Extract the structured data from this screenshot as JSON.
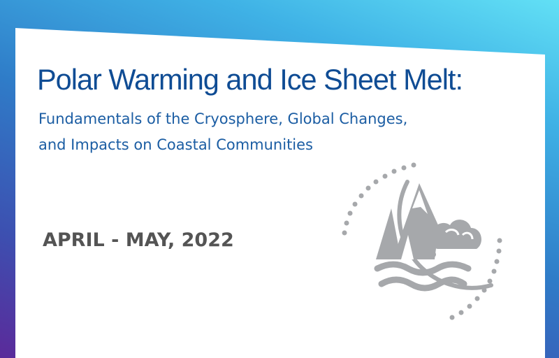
{
  "title": "Polar Warming and Ice Sheet Melt:",
  "subtitle_lines": [
    "Fundamentals of the Cryosphere, Global Changes,",
    "and Impacts on Coastal Communities"
  ],
  "dates": "APRIL - MAY, 2022",
  "emblem": {
    "icon": "iceberg-glacier-waves-icon",
    "color": "#a6a8ab"
  },
  "colors": {
    "title": "#0f4c94",
    "subtitle": "#1b5da3",
    "dates": "#545454",
    "background_gradient": [
      "#5b2a9a",
      "#2f7cc8",
      "#62e0f5"
    ]
  }
}
